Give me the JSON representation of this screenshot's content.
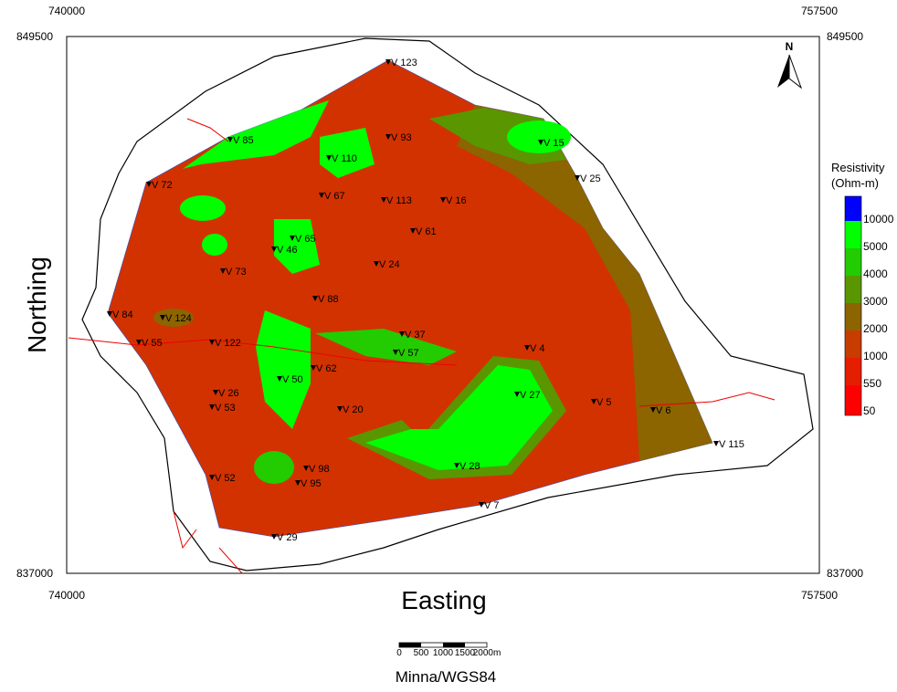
{
  "axes": {
    "easting_labels": [
      "740000",
      "757500"
    ],
    "northing_labels": [
      "849500",
      "837000"
    ],
    "x_title": "Easting",
    "y_title": "Northing"
  },
  "north": "N",
  "legend": {
    "title": [
      "Resistivity",
      "(Ohm-m)"
    ],
    "levels": [
      {
        "label": "10000",
        "color": "#0000ff"
      },
      {
        "label": "5000",
        "color": "#00ff00"
      },
      {
        "label": "4000",
        "color": "#22cc00"
      },
      {
        "label": "3000",
        "color": "#5a9600"
      },
      {
        "label": "2000",
        "color": "#8c6400"
      },
      {
        "label": "1000",
        "color": "#c83c00"
      },
      {
        "label": "550",
        "color": "#e61e00"
      },
      {
        "label": "50",
        "color": "#ff0000"
      }
    ]
  },
  "scale_bar": {
    "labels": [
      "0",
      "500",
      "1000",
      "1500",
      "2000m"
    ]
  },
  "projection": "Minna/WGS84",
  "stations": [
    "V 123",
    "V 15",
    "V 25",
    "V 85",
    "V 93",
    "V 110",
    "V 72",
    "V 67",
    "V 113",
    "V 16",
    "V 65",
    "V 61",
    "V 24",
    "V 88",
    "V 84",
    "V 124",
    "V 55",
    "V 122",
    "V 37",
    "V 57",
    "V 4",
    "V 27",
    "V 5",
    "V 6",
    "V 115",
    "V 28",
    "V 7",
    "V 29",
    "V 52",
    "V 53",
    "V 26",
    "V 20",
    "V 95",
    "V 98",
    "V 73",
    "V 46",
    "V 50",
    "V 62"
  ]
}
